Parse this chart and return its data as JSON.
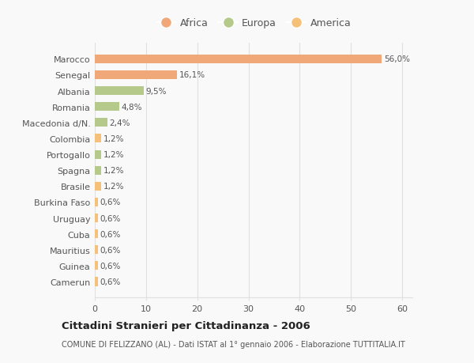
{
  "categories": [
    "Camerun",
    "Guinea",
    "Mauritius",
    "Cuba",
    "Uruguay",
    "Burkina Faso",
    "Brasile",
    "Spagna",
    "Portogallo",
    "Colombia",
    "Macedonia d/N.",
    "Romania",
    "Albania",
    "Senegal",
    "Marocco"
  ],
  "values": [
    0.6,
    0.6,
    0.6,
    0.6,
    0.6,
    0.6,
    1.2,
    1.2,
    1.2,
    1.2,
    2.4,
    4.8,
    9.5,
    16.1,
    56.0
  ],
  "colors": [
    "#f5c07a",
    "#f5c07a",
    "#f5c07a",
    "#f5c07a",
    "#f5c07a",
    "#f5c07a",
    "#f5c07a",
    "#b5c98a",
    "#b5c98a",
    "#f5c07a",
    "#b5c98a",
    "#b5c98a",
    "#b5c98a",
    "#f0a878",
    "#f0a878"
  ],
  "labels": [
    "0,6%",
    "0,6%",
    "0,6%",
    "0,6%",
    "0,6%",
    "0,6%",
    "1,2%",
    "1,2%",
    "1,2%",
    "1,2%",
    "2,4%",
    "4,8%",
    "9,5%",
    "16,1%",
    "56,0%"
  ],
  "continent_colors": {
    "Africa": "#f0a878",
    "Europa": "#b5c98a",
    "America": "#f5c07a"
  },
  "legend_labels": [
    "Africa",
    "Europa",
    "America"
  ],
  "title": "Cittadini Stranieri per Cittadinanza - 2006",
  "subtitle": "COMUNE DI FELIZZANO (AL) - Dati ISTAT al 1° gennaio 2006 - Elaborazione TUTTITALIA.IT",
  "xlim": [
    0,
    62
  ],
  "xticks": [
    0,
    10,
    20,
    30,
    40,
    50,
    60
  ],
  "background_color": "#f9f9f9",
  "bar_height": 0.55,
  "grid_color": "#e0e0e0",
  "text_color": "#555555"
}
